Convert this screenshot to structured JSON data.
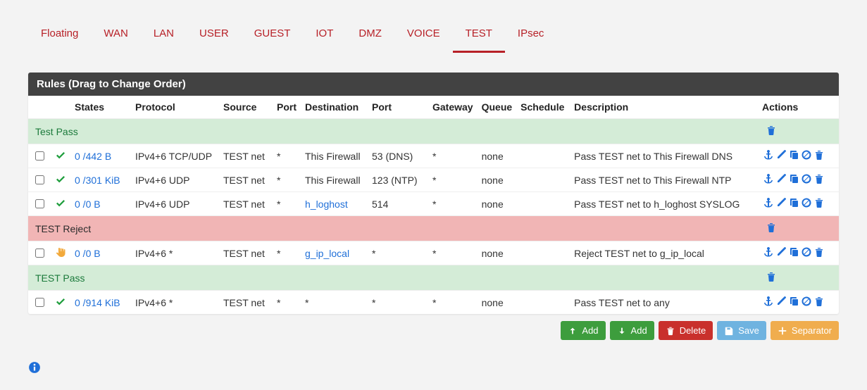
{
  "colors": {
    "tab_text": "#b72027",
    "tab_active_border": "#b72027",
    "link": "#1f6fd8",
    "pass_icon": "#1f9e3d",
    "reject_icon": "#f2a93b",
    "panel_header_bg": "#424242",
    "sep_pass_bg": "#d4ecd7",
    "sep_pass_text": "#1b7a3b",
    "sep_reject_bg": "#f1b5b5",
    "btn_green": "#3d9d3d",
    "btn_red": "#c9302c",
    "btn_blue": "#6fb3e0",
    "btn_orange": "#f0ad4e"
  },
  "tabs": [
    {
      "label": "Floating",
      "active": false
    },
    {
      "label": "WAN",
      "active": false
    },
    {
      "label": "LAN",
      "active": false
    },
    {
      "label": "USER",
      "active": false
    },
    {
      "label": "GUEST",
      "active": false
    },
    {
      "label": "IOT",
      "active": false
    },
    {
      "label": "DMZ",
      "active": false
    },
    {
      "label": "VOICE",
      "active": false
    },
    {
      "label": "TEST",
      "active": true
    },
    {
      "label": "IPsec",
      "active": false
    }
  ],
  "panel_title": "Rules (Drag to Change Order)",
  "columns": {
    "states": "States",
    "protocol": "Protocol",
    "source": "Source",
    "sport": "Port",
    "destination": "Destination",
    "dport": "Port",
    "gateway": "Gateway",
    "queue": "Queue",
    "schedule": "Schedule",
    "description": "Description",
    "actions": "Actions"
  },
  "separators": {
    "s0": "Test Pass",
    "s1": "TEST Reject",
    "s2": "TEST Pass"
  },
  "rules": [
    {
      "status": "pass",
      "states": "0 /442 B",
      "protocol": "IPv4+6 TCP/UDP",
      "source": "TEST net",
      "sport": "*",
      "destination": "This Firewall",
      "dest_link": false,
      "dport": "53 (DNS)",
      "gateway": "*",
      "queue": "none",
      "schedule": "",
      "description": "Pass TEST net to This Firewall DNS"
    },
    {
      "status": "pass",
      "states": "0 /301 KiB",
      "protocol": "IPv4+6 UDP",
      "source": "TEST net",
      "sport": "*",
      "destination": "This Firewall",
      "dest_link": false,
      "dport": "123 (NTP)",
      "gateway": "*",
      "queue": "none",
      "schedule": "",
      "description": "Pass TEST net to This Firewall NTP"
    },
    {
      "status": "pass",
      "states": "0 /0 B",
      "protocol": "IPv4+6 UDP",
      "source": "TEST net",
      "sport": "*",
      "destination": "h_loghost",
      "dest_link": true,
      "dport": "514",
      "gateway": "*",
      "queue": "none",
      "schedule": "",
      "description": "Pass TEST net to h_loghost SYSLOG"
    },
    {
      "status": "reject",
      "states": "0 /0 B",
      "protocol": "IPv4+6 *",
      "source": "TEST net",
      "sport": "*",
      "destination": "g_ip_local",
      "dest_link": true,
      "dport": "*",
      "gateway": "*",
      "queue": "none",
      "schedule": "",
      "description": "Reject TEST net to g_ip_local"
    },
    {
      "status": "pass",
      "states": "0 /914 KiB",
      "protocol": "IPv4+6 *",
      "source": "TEST net",
      "sport": "*",
      "destination": "*",
      "dest_link": false,
      "dport": "*",
      "gateway": "*",
      "queue": "none",
      "schedule": "",
      "description": "Pass TEST net to any"
    }
  ],
  "buttons": {
    "add_up": "Add",
    "add_down": "Add",
    "delete": "Delete",
    "save": "Save",
    "separator": "Separator"
  }
}
